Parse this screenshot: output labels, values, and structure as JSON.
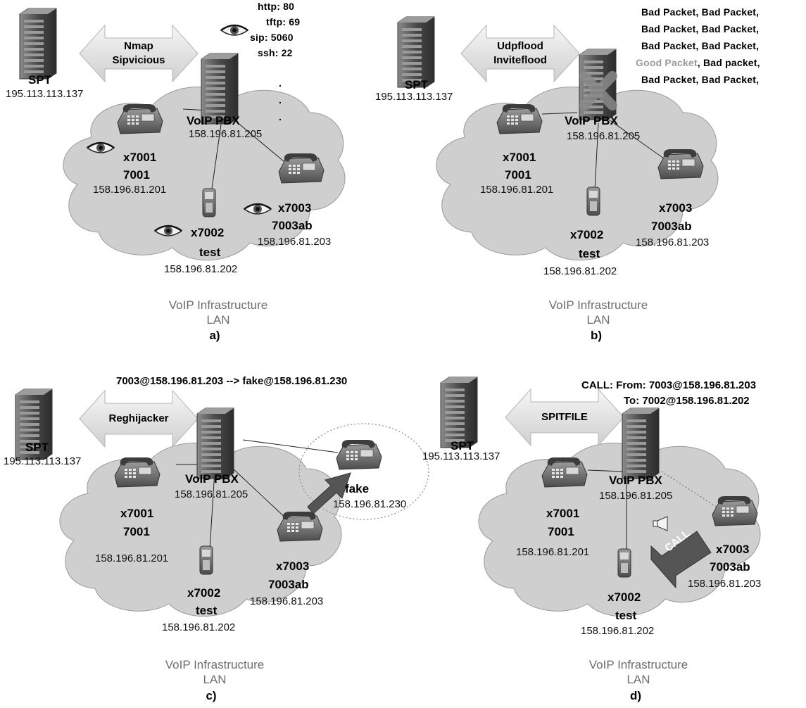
{
  "panels": {
    "a": {
      "caption": "a)",
      "spt": {
        "name": "SPT",
        "ip": "195.113.113.137"
      },
      "arrow_text": "Nmap\nSipvicious",
      "pbx": {
        "name": "VoIP PBX",
        "ip": "158.196.81.205"
      },
      "ports": [
        "http: 80",
        "tftp: 69",
        "sip: 5060",
        "ssh: 22"
      ],
      "ellipsis": ".\n.\n.",
      "ext1": {
        "ext": "x7001",
        "user": "7001",
        "ip": "158.196.81.201"
      },
      "ext2": {
        "ext": "x7002",
        "user": "test",
        "ip": "158.196.81.202"
      },
      "ext3": {
        "ext": "x7003",
        "user": "7003ab",
        "ip": "158.196.81.203"
      },
      "infra": "VoIP Infrastructure\nLAN"
    },
    "b": {
      "caption": "b)",
      "spt": {
        "name": "SPT",
        "ip": "195.113.113.137"
      },
      "arrow_text": "Udpflood\nInviteflood",
      "pbx": {
        "name": "VoIP PBX",
        "ip": "158.196.81.205"
      },
      "packets": {
        "line1": "Bad Packet, Bad Packet,",
        "line2": "Bad Packet, Bad Packet,",
        "line3": "Bad Packet, Bad Packet,",
        "line4_good": "Good Packet",
        "line4_rest": ", Bad packet,",
        "line5": "Bad Packet, Bad Packet,"
      },
      "ext1": {
        "ext": "x7001",
        "user": "7001",
        "ip": "158.196.81.201"
      },
      "ext2": {
        "ext": "x7002",
        "user": "test",
        "ip": "158.196.81.202"
      },
      "ext3": {
        "ext": "x7003",
        "user": "7003ab",
        "ip": "158.196.81.203"
      },
      "infra": "VoIP Infrastructure\nLAN"
    },
    "c": {
      "caption": "c)",
      "spt": {
        "name": "SPT",
        "ip": "195.113.113.137"
      },
      "arrow_text": "Reghijacker",
      "header": "7003@158.196.81.203 --> fake@158.196.81.230",
      "pbx": {
        "name": "VoIP PBX",
        "ip": "158.196.81.205"
      },
      "fake": {
        "name": "fake",
        "ip": "158.196.81.230"
      },
      "ext1": {
        "ext": "x7001",
        "user": "7001",
        "ip": "158.196.81.201"
      },
      "ext2": {
        "ext": "x7002",
        "user": "test",
        "ip": "158.196.81.202"
      },
      "ext3": {
        "ext": "x7003",
        "user": "7003ab",
        "ip": "158.196.81.203"
      },
      "infra": "VoIP Infrastructure\nLAN"
    },
    "d": {
      "caption": "d)",
      "spt": {
        "name": "SPT",
        "ip": "195.113.113.137"
      },
      "arrow_text": "SPITFILE",
      "header1": "CALL: From: 7003@158.196.81.203",
      "header2": "To: 7002@158.196.81.202",
      "call_label": "CALL",
      "pbx": {
        "name": "VoIP PBX",
        "ip": "158.196.81.205"
      },
      "ext1": {
        "ext": "x7001",
        "user": "7001",
        "ip": "158.196.81.201"
      },
      "ext2": {
        "ext": "x7002",
        "user": "test",
        "ip": "158.196.81.202"
      },
      "ext3": {
        "ext": "x7003",
        "user": "7003ab",
        "ip": "158.196.81.203"
      },
      "infra": "VoIP Infrastructure\nLAN"
    }
  },
  "colors": {
    "cloud": "#cfcfcf",
    "cloud_stroke": "#9a9a9a",
    "server": "#5a5a5a",
    "arrow": "#e6e6e6",
    "attack_arrow": "#555555",
    "good_packet": "#9a9a9a"
  }
}
